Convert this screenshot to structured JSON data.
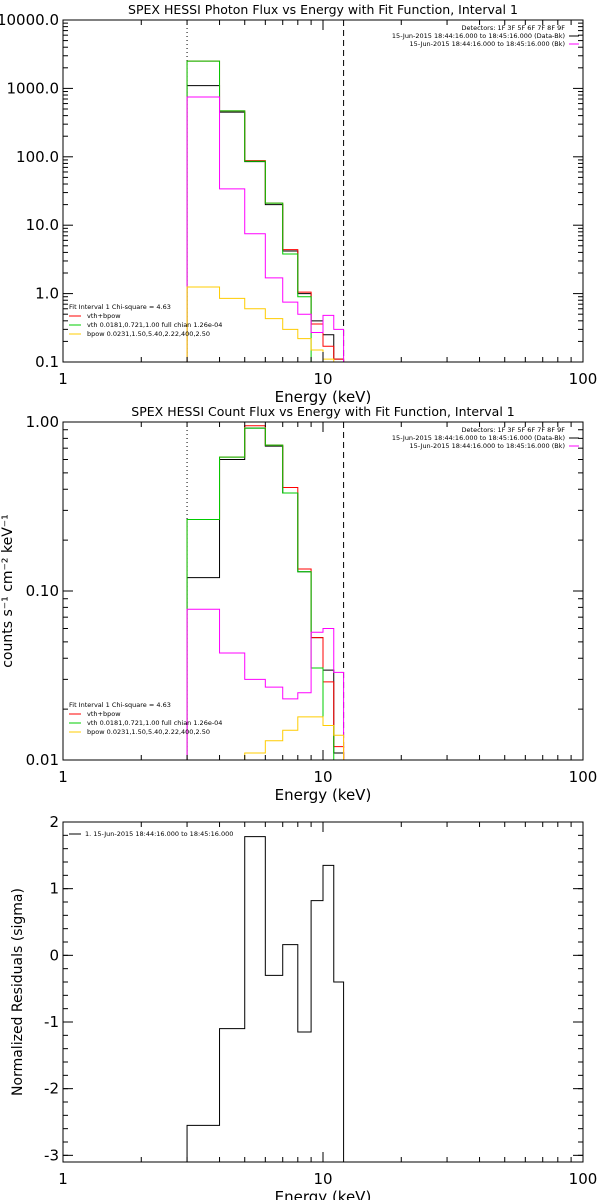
{
  "chart_data": [
    {
      "type": "line",
      "step": true,
      "title": "SPEX HESSI Photon Flux vs Energy with Fit Function, Interval 1",
      "xlabel": "Energy (keV)",
      "ylabel": "",
      "xscale": "log",
      "yscale": "log",
      "xlim": [
        1,
        100
      ],
      "ylim": [
        0.1,
        10000
      ],
      "xticks": [
        1,
        10,
        100
      ],
      "xtick_labels": [
        "1",
        "10",
        "100"
      ],
      "yticks": [
        0.1,
        1,
        10,
        100,
        1000,
        10000
      ],
      "ytick_labels": [
        "0.1",
        "1.0",
        "10.0",
        "100.0",
        "1000.0",
        "10000.0"
      ],
      "vlines": [
        {
          "x": 3.0,
          "style": "dotted",
          "color": "#000000"
        },
        {
          "x": 12.0,
          "style": "dashed",
          "color": "#000000"
        }
      ],
      "edges": [
        3.0,
        4.0,
        5.0,
        6.0,
        7.0,
        8.0,
        9.0,
        10.0,
        11.0,
        12.0
      ],
      "series": [
        {
          "name": "",
          "color": "#000000",
          "values": [
            1100,
            450,
            85,
            20,
            4.2,
            1.0,
            0.4,
            0.25,
            0.11
          ]
        },
        {
          "name": "",
          "color": "#ff0000",
          "values": [
            2500,
            470,
            88,
            21,
            4.4,
            1.05,
            0.36,
            0.17,
            0.11
          ]
        },
        {
          "name": "",
          "color": "#00cc00",
          "values": [
            2500,
            470,
            86,
            21,
            3.8,
            0.9,
            0.1,
            0.1,
            0.1
          ]
        },
        {
          "name": "",
          "color": "#ff00ff",
          "values": [
            750,
            34,
            7.5,
            1.7,
            0.75,
            0.5,
            0.27,
            0.48,
            0.3
          ]
        },
        {
          "name": "",
          "color": "#ffcc00",
          "values": [
            1.25,
            0.85,
            0.6,
            0.43,
            0.3,
            0.22,
            0.15,
            0.11,
            0.1
          ]
        }
      ],
      "info_lines": [
        {
          "text": "Detectors: 1F 3F 5F 6F 7F 8F 9F",
          "color": "#000000"
        },
        {
          "text": "15-Jun-2015 18:44:16.000 to 18:45:16.000 (Data-Bk)",
          "color": "#000000"
        },
        {
          "text": "15-Jun-2015 18:44:16.000 to 18:45:16.000 (Bk)",
          "color": "#ff00ff"
        }
      ],
      "legend_title": "Fit Interval 1   Chi-square = 4.63",
      "legend": [
        {
          "label": "vth+bpow",
          "color": "#ff0000"
        },
        {
          "label": "vth 0.0181,0.721,1.00  full chian 1.26e-04",
          "color": "#00cc00"
        },
        {
          "label": "bpow 0.0231,1.50,5.40,2.22,400,2.50",
          "color": "#ffcc00"
        }
      ]
    },
    {
      "type": "line",
      "step": true,
      "title": "SPEX HESSI Count Flux vs Energy with Fit Function, Interval 1",
      "xlabel": "Energy (keV)",
      "ylabel": "counts s⁻¹ cm⁻² keV⁻¹",
      "xscale": "log",
      "yscale": "log",
      "xlim": [
        1,
        100
      ],
      "ylim": [
        0.01,
        1.0
      ],
      "xticks": [
        1,
        10,
        100
      ],
      "xtick_labels": [
        "1",
        "10",
        "100"
      ],
      "yticks": [
        0.01,
        0.1,
        1.0
      ],
      "ytick_labels": [
        "0.01",
        "0.10",
        "1.00"
      ],
      "vlines": [
        {
          "x": 3.0,
          "style": "dotted",
          "color": "#000000"
        },
        {
          "x": 12.0,
          "style": "dashed",
          "color": "#000000"
        }
      ],
      "edges": [
        3.0,
        4.0,
        5.0,
        6.0,
        7.0,
        8.0,
        9.0,
        10.0,
        11.0,
        12.0
      ],
      "series": [
        {
          "name": "",
          "color": "#000000",
          "values": [
            0.12,
            0.6,
            0.92,
            0.72,
            0.38,
            0.13,
            0.053,
            0.034,
            0.011
          ]
        },
        {
          "name": "",
          "color": "#ff0000",
          "values": [
            0.265,
            0.62,
            0.95,
            0.73,
            0.41,
            0.135,
            0.053,
            0.029,
            0.012
          ]
        },
        {
          "name": "",
          "color": "#00cc00",
          "values": [
            0.265,
            0.62,
            0.92,
            0.73,
            0.38,
            0.13,
            0.035,
            0.016,
            0.01
          ]
        },
        {
          "name": "",
          "color": "#ff00ff",
          "values": [
            0.078,
            0.043,
            0.03,
            0.027,
            0.023,
            0.025,
            0.057,
            0.06,
            0.033
          ]
        },
        {
          "name": "",
          "color": "#ffcc00",
          "values": [
            0.009,
            0.009,
            0.011,
            0.013,
            0.015,
            0.018,
            0.018,
            0.016,
            0.014
          ]
        }
      ],
      "info_lines": [
        {
          "text": "Detectors: 1F 3F 5F 6F 7F 8F 9F",
          "color": "#000000"
        },
        {
          "text": "15-Jun-2015 18:44:16.000 to 18:45:16.000 (Data-Bk)",
          "color": "#000000"
        },
        {
          "text": "15-Jun-2015 18:44:16.000 to 18:45:16.000 (Bk)",
          "color": "#ff00ff"
        }
      ],
      "legend_title": "Fit Interval 1   Chi-square = 4.63",
      "legend": [
        {
          "label": "vth+bpow",
          "color": "#ff0000"
        },
        {
          "label": "vth 0.0181,0.721,1.00  full chian 1.26e-04",
          "color": "#00cc00"
        },
        {
          "label": "bpow 0.0231,1.50,5.40,2.22,400,2.50",
          "color": "#ffcc00"
        }
      ]
    },
    {
      "type": "line",
      "step": true,
      "title": "",
      "xlabel": "Energy (keV)",
      "ylabel": "Normalized Residuals (sigma)",
      "xscale": "log",
      "yscale": "linear",
      "xlim": [
        1,
        100
      ],
      "ylim": [
        -3.1,
        2.0
      ],
      "xticks": [
        1,
        10,
        100
      ],
      "xtick_labels": [
        "1",
        "10",
        "100"
      ],
      "yticks": [
        2,
        1,
        0,
        -1,
        -2,
        -3
      ],
      "ytick_labels": [
        "2",
        "1",
        "0",
        "-1",
        "-2",
        "-3"
      ],
      "edges": [
        3.0,
        4.0,
        5.0,
        6.0,
        7.0,
        8.0,
        9.0,
        10.0,
        11.0,
        12.0
      ],
      "series": [
        {
          "name": "",
          "color": "#000000",
          "values": [
            -2.55,
            -1.1,
            1.78,
            -0.3,
            0.16,
            -1.15,
            0.82,
            1.35,
            -0.4
          ]
        }
      ],
      "legend": [
        {
          "label": "1. 15-Jun-2015 18:44:16.000 to 18:45:16.000",
          "color": "#000000"
        }
      ]
    }
  ]
}
